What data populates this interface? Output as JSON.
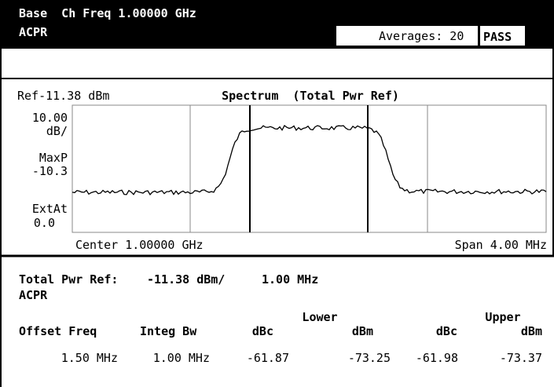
{
  "header": {
    "title": "Base  Ch Freq 1.00000 GHz",
    "mode": "ACPR",
    "averages": "Averages: 20",
    "status": "PASS"
  },
  "spectrum": {
    "ref": "Ref-11.38 dBm",
    "title": "Spectrum  (Total Pwr Ref)",
    "scale": "10.00",
    "scale_unit": "dB/",
    "detector": "MaxP",
    "detector_value": "-10.3",
    "ext_att": "ExtAt",
    "ext_att_value": "0.0",
    "center": "Center 1.00000 GHz",
    "span": "Span 4.00 MHz"
  },
  "results": {
    "total_pwr_label": "Total Pwr Ref:",
    "total_pwr": "-11.38 dBm/",
    "bandwidth": "1.00 MHz",
    "mode": "ACPR",
    "groups": [
      "Lower",
      "Upper"
    ],
    "columns": [
      "Offset Freq",
      "Integ Bw",
      "dBc",
      "dBm",
      "dBc",
      "dBm"
    ],
    "rows": [
      [
        "1.50 MHz",
        "1.00 MHz",
        "-61.87",
        "-73.25",
        "-61.98",
        "-73.37"
      ]
    ]
  }
}
